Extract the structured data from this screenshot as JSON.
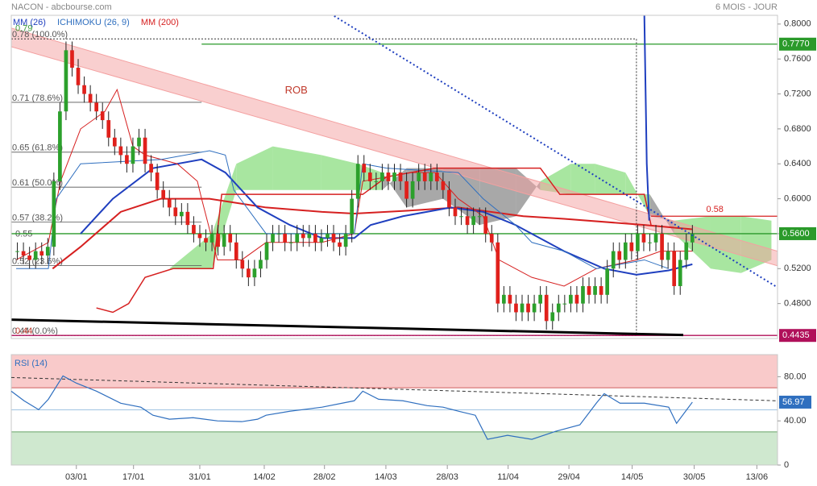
{
  "chart_data": [
    {
      "type": "candlestick",
      "title": "NACON - abcbourse.com",
      "subtitle": "6 MOIS - JOUR",
      "legend": [
        {
          "label": "MM (26)",
          "color": "#1f3fbf"
        },
        {
          "label": "ICHIMOKU (26, 9)",
          "color": "#2f6fbf"
        },
        {
          "label": "MM (200)",
          "color": "#d62020"
        }
      ],
      "xlim": [
        -1,
        125
      ],
      "ylim": [
        0.44,
        0.81
      ],
      "yticks": [
        {
          "value": 0.8,
          "label": "0.8000"
        },
        {
          "value": 0.76,
          "label": "0.7600"
        },
        {
          "value": 0.72,
          "label": "0.7200"
        },
        {
          "value": 0.68,
          "label": "0.6800"
        },
        {
          "value": 0.64,
          "label": "0.6400"
        },
        {
          "value": 0.6,
          "label": "0.6000"
        },
        {
          "value": 0.56,
          "label": "0.5600"
        },
        {
          "value": 0.52,
          "label": "0.5200"
        },
        {
          "value": 0.48,
          "label": "0.4800"
        }
      ],
      "up_color": "#2ca02c",
      "down_color": "#e0201b",
      "open": [
        0.54,
        0.54,
        0.535,
        0.53,
        0.54,
        0.535,
        0.545,
        0.62,
        0.7,
        0.77,
        0.75,
        0.73,
        0.72,
        0.71,
        0.7,
        0.69,
        0.67,
        0.66,
        0.65,
        0.64,
        0.66,
        0.67,
        0.64,
        0.63,
        0.61,
        0.6,
        0.59,
        0.58,
        0.585,
        0.57,
        0.56,
        0.555,
        0.55,
        0.56,
        0.545,
        0.56,
        0.55,
        0.53,
        0.52,
        0.51,
        0.52,
        0.53,
        0.55,
        0.56,
        0.56,
        0.55,
        0.55,
        0.56,
        0.555,
        0.56,
        0.55,
        0.555,
        0.56,
        0.55,
        0.545,
        0.56,
        0.6,
        0.64,
        0.63,
        0.62,
        0.62,
        0.63,
        0.62,
        0.63,
        0.62,
        0.6,
        0.62,
        0.63,
        0.62,
        0.63,
        0.62,
        0.61,
        0.59,
        0.58,
        0.58,
        0.57,
        0.58,
        0.58,
        0.56,
        0.55,
        0.48,
        0.49,
        0.48,
        0.47,
        0.48,
        0.47,
        0.48,
        0.49,
        0.46,
        0.47,
        0.48,
        0.48,
        0.49,
        0.48,
        0.5,
        0.49,
        0.5,
        0.49,
        0.52,
        0.54,
        0.53,
        0.55,
        0.54,
        0.56,
        0.55,
        0.55,
        0.56,
        0.53,
        0.54,
        0.5,
        0.53,
        0.55
      ],
      "high": [
        0.55,
        0.55,
        0.545,
        0.55,
        0.55,
        0.555,
        0.63,
        0.71,
        0.78,
        0.78,
        0.76,
        0.74,
        0.73,
        0.72,
        0.71,
        0.7,
        0.68,
        0.67,
        0.66,
        0.67,
        0.68,
        0.68,
        0.65,
        0.64,
        0.62,
        0.61,
        0.6,
        0.595,
        0.595,
        0.58,
        0.57,
        0.565,
        0.57,
        0.57,
        0.57,
        0.57,
        0.56,
        0.54,
        0.53,
        0.53,
        0.54,
        0.56,
        0.57,
        0.57,
        0.57,
        0.56,
        0.57,
        0.57,
        0.57,
        0.57,
        0.565,
        0.57,
        0.57,
        0.56,
        0.57,
        0.61,
        0.65,
        0.65,
        0.64,
        0.63,
        0.64,
        0.64,
        0.64,
        0.64,
        0.63,
        0.63,
        0.64,
        0.64,
        0.64,
        0.64,
        0.63,
        0.62,
        0.6,
        0.59,
        0.59,
        0.59,
        0.59,
        0.59,
        0.57,
        0.56,
        0.5,
        0.5,
        0.49,
        0.49,
        0.49,
        0.49,
        0.5,
        0.5,
        0.48,
        0.49,
        0.49,
        0.5,
        0.5,
        0.51,
        0.51,
        0.51,
        0.51,
        0.53,
        0.55,
        0.55,
        0.56,
        0.56,
        0.57,
        0.57,
        0.56,
        0.57,
        0.57,
        0.55,
        0.55,
        0.54,
        0.56,
        0.57
      ],
      "low": [
        0.53,
        0.525,
        0.52,
        0.52,
        0.525,
        0.525,
        0.535,
        0.61,
        0.69,
        0.74,
        0.72,
        0.71,
        0.7,
        0.69,
        0.68,
        0.66,
        0.65,
        0.64,
        0.63,
        0.63,
        0.65,
        0.63,
        0.62,
        0.6,
        0.59,
        0.58,
        0.57,
        0.57,
        0.56,
        0.55,
        0.545,
        0.54,
        0.54,
        0.535,
        0.535,
        0.54,
        0.52,
        0.51,
        0.5,
        0.5,
        0.51,
        0.52,
        0.54,
        0.55,
        0.54,
        0.54,
        0.54,
        0.545,
        0.545,
        0.54,
        0.54,
        0.545,
        0.54,
        0.535,
        0.535,
        0.55,
        0.59,
        0.62,
        0.61,
        0.61,
        0.61,
        0.61,
        0.61,
        0.61,
        0.59,
        0.59,
        0.61,
        0.61,
        0.61,
        0.61,
        0.6,
        0.58,
        0.57,
        0.57,
        0.56,
        0.56,
        0.57,
        0.55,
        0.54,
        0.47,
        0.47,
        0.47,
        0.46,
        0.46,
        0.46,
        0.46,
        0.47,
        0.45,
        0.45,
        0.46,
        0.47,
        0.47,
        0.47,
        0.47,
        0.48,
        0.48,
        0.48,
        0.48,
        0.51,
        0.52,
        0.52,
        0.53,
        0.53,
        0.54,
        0.54,
        0.54,
        0.52,
        0.52,
        0.49,
        0.49,
        0.52,
        0.54
      ],
      "close": [
        0.54,
        0.535,
        0.53,
        0.54,
        0.535,
        0.545,
        0.62,
        0.7,
        0.77,
        0.75,
        0.73,
        0.72,
        0.71,
        0.7,
        0.69,
        0.67,
        0.66,
        0.65,
        0.64,
        0.66,
        0.67,
        0.64,
        0.63,
        0.61,
        0.6,
        0.59,
        0.58,
        0.585,
        0.57,
        0.56,
        0.555,
        0.55,
        0.56,
        0.545,
        0.56,
        0.55,
        0.53,
        0.52,
        0.51,
        0.52,
        0.53,
        0.55,
        0.56,
        0.56,
        0.55,
        0.55,
        0.56,
        0.555,
        0.56,
        0.55,
        0.555,
        0.56,
        0.55,
        0.545,
        0.56,
        0.6,
        0.64,
        0.63,
        0.62,
        0.62,
        0.63,
        0.62,
        0.63,
        0.62,
        0.6,
        0.62,
        0.63,
        0.62,
        0.63,
        0.62,
        0.61,
        0.59,
        0.58,
        0.58,
        0.57,
        0.58,
        0.58,
        0.56,
        0.55,
        0.48,
        0.49,
        0.48,
        0.47,
        0.48,
        0.47,
        0.48,
        0.49,
        0.46,
        0.47,
        0.48,
        0.48,
        0.49,
        0.48,
        0.5,
        0.49,
        0.5,
        0.49,
        0.52,
        0.54,
        0.53,
        0.55,
        0.54,
        0.56,
        0.55,
        0.55,
        0.56,
        0.53,
        0.54,
        0.5,
        0.53,
        0.55,
        0.56
      ],
      "cloud": {
        "x": [
          25,
          32,
          36,
          42,
          50,
          56,
          60,
          64,
          70,
          76,
          82,
          86,
          91,
          95,
          100,
          104,
          108,
          114,
          119,
          124
        ],
        "a": [
          0.52,
          0.56,
          0.64,
          0.66,
          0.65,
          0.64,
          0.63,
          0.59,
          0.6,
          0.57,
          0.58,
          0.62,
          0.64,
          0.64,
          0.63,
          0.58,
          0.575,
          0.58,
          0.58,
          0.575
        ],
        "b": [
          0.52,
          0.52,
          0.61,
          0.61,
          0.61,
          0.61,
          0.61,
          0.635,
          0.635,
          0.635,
          0.635,
          0.61,
          0.605,
          0.605,
          0.605,
          0.605,
          0.56,
          0.52,
          0.515,
          0.53
        ],
        "up_color": "#a8e6a0",
        "down_color": "#a8a8a8"
      },
      "channel": {
        "x": [
          -1,
          125
        ],
        "upper": [
          0.7954,
          0.54
        ],
        "lower": [
          0.774,
          0.5233
        ],
        "color": "#f4a0a0",
        "label": "ROB",
        "label_x": 44,
        "label_y": 0.7235,
        "label_color": "#c0392b"
      },
      "lines": [
        {
          "color": "#d62020",
          "width": 2,
          "x": [
            5.8,
            10.4,
            17,
            23.6,
            31.6,
            40.9,
            50.1,
            55.4,
            63.4,
            72.5,
            83.2,
            89.9,
            103.1,
            111
          ],
          "values": [
            0.52,
            0.545,
            0.585,
            0.6,
            0.6,
            0.59,
            0.585,
            0.583,
            0.586,
            0.59,
            0.58,
            0.577,
            0.57,
            0.565
          ]
        },
        {
          "color": "#1f3fbf",
          "width": 2,
          "x": [
            10.4,
            15.7,
            22.3,
            30.3,
            34.2,
            39.5,
            44.8,
            50.1,
            55.4,
            58.1,
            63.4,
            71.3,
            76.6,
            81.9,
            89.9,
            96.5,
            101.8,
            107.1,
            111
          ],
          "values": [
            0.56,
            0.6,
            0.635,
            0.645,
            0.63,
            0.59,
            0.57,
            0.555,
            0.555,
            0.57,
            0.58,
            0.59,
            0.585,
            0.57,
            0.54,
            0.52,
            0.513,
            0.518,
            0.525
          ]
        },
        {
          "color": "#d62020",
          "width": 1,
          "x": [
            -0.2,
            5.1,
            7.1,
            10.4,
            14.4,
            16.4,
            19,
            21,
            26.3,
            29.6,
            30.3,
            32.9,
            36.9,
            40.9,
            50.1,
            55.4,
            56.8,
            64.7,
            68.7,
            72.5,
            76.6,
            79.2,
            84.6,
            89.9,
            95.2,
            101.8,
            105.8,
            111
          ],
          "values": [
            0.53,
            0.55,
            0.62,
            0.68,
            0.7,
            0.725,
            0.66,
            0.65,
            0.64,
            0.62,
            0.6,
            0.53,
            0.53,
            0.55,
            0.55,
            0.56,
            0.62,
            0.63,
            0.63,
            0.6,
            0.58,
            0.53,
            0.51,
            0.5,
            0.52,
            0.53,
            0.54,
            0.54
          ]
        },
        {
          "color": "#2f6fbf",
          "width": 1,
          "x": [
            -0.2,
            5.1,
            6.4,
            10.4,
            23.6,
            31.6,
            34.2,
            35.6,
            40.9,
            55.4,
            56.8,
            60.7,
            72.5,
            76.6,
            81.9,
            84.6,
            89.9,
            95.2,
            103.1,
            107.1
          ],
          "values": [
            0.52,
            0.52,
            0.6,
            0.64,
            0.645,
            0.655,
            0.65,
            0.61,
            0.56,
            0.56,
            0.64,
            0.635,
            0.63,
            0.6,
            0.57,
            0.55,
            0.54,
            0.52,
            0.53,
            0.52
          ]
        },
        {
          "color": "#d62020",
          "width": 1.5,
          "x": [
            13,
            15.7,
            18.3,
            21,
            25.6,
            32.2,
            33.6,
            55.4,
            56.8,
            60.7,
            68.7,
            86,
            89.2,
            103.1,
            104.2
          ],
          "values": [
            0.475,
            0.47,
            0.48,
            0.51,
            0.52,
            0.52,
            0.605,
            0.605,
            0.605,
            0.625,
            0.635,
            0.635,
            0.605,
            0.605,
            0.57
          ]
        },
        {
          "color": "#1f3fbf",
          "width": 2,
          "x": [
            103.1,
            103.5,
            103.9
          ],
          "values": [
            0.81,
            0.64,
            0.575
          ]
        }
      ],
      "trendlines": [
        {
          "color": "#1f3fbf",
          "dash": "2,3",
          "width": 2,
          "x": [
            52.1,
            125
          ],
          "values": [
            0.8092,
            0.4985
          ]
        },
        {
          "color": "#000000",
          "dash": "",
          "width": 3,
          "x": [
            -1,
            109.5
          ],
          "values": [
            0.4616,
            0.444
          ]
        }
      ],
      "fib": {
        "x_end": 101.8,
        "line_end": 30.3,
        "color": "#555555",
        "levels": [
          {
            "value": 0.783,
            "label": "0.78 (100.0%)"
          },
          {
            "value": 0.7104,
            "label": "0.71 (78.6%)"
          },
          {
            "value": 0.6533,
            "label": "0.65 (61.8%)"
          },
          {
            "value": 0.6133,
            "label": "0.61 (50.0%)"
          },
          {
            "value": 0.5732,
            "label": "0.57 (38.2%)"
          },
          {
            "value": 0.5236,
            "label": "0.52 (23.6%)"
          },
          {
            "value": 0.4435,
            "label": "0.44 (0.0%)"
          }
        ]
      },
      "extra_labels": [
        {
          "value": 0.79,
          "color": "#3a9a3a"
        },
        {
          "value": 0.5547,
          "label": "0.55",
          "color": "#555555"
        },
        {
          "value": 0.4435,
          "label": "0.44",
          "color": "#c0392b"
        }
      ],
      "hlines": [
        {
          "value": 0.777,
          "label": "0.7770",
          "color": "#2a9a2a",
          "start": 30.3,
          "style": "box"
        },
        {
          "value": 0.56,
          "label": "0.5600",
          "color": "#2a9a2a",
          "start": -1,
          "style": "box"
        },
        {
          "value": 0.4435,
          "label": "0.4435",
          "color": "#b0105a",
          "start": -1,
          "style": "box"
        },
        {
          "value": 0.58,
          "color": "#d62020",
          "start": 104.2,
          "style": "text"
        }
      ]
    },
    {
      "type": "line",
      "title": "RSI (14)",
      "xlim": [
        -1,
        125
      ],
      "ylim": [
        0,
        100
      ],
      "yticks": [
        {
          "value": 80,
          "label": "80.00"
        },
        {
          "value": 40,
          "label": "40.00"
        },
        0
      ],
      "xticks": [
        {
          "value": 9.7,
          "label": "03/01"
        },
        {
          "value": 19.1,
          "label": "17/01"
        },
        {
          "value": 30,
          "label": "31/01"
        },
        {
          "value": 40.6,
          "label": "14/02"
        },
        {
          "value": 50.5,
          "label": "28/02"
        },
        {
          "value": 60.6,
          "label": "14/03"
        },
        {
          "value": 70.7,
          "label": "28/03"
        },
        {
          "value": 80.7,
          "label": "11/04"
        },
        {
          "value": 90.7,
          "label": "29/04"
        },
        {
          "value": 101.1,
          "label": "14/05"
        },
        {
          "value": 111.3,
          "label": "30/05"
        },
        {
          "value": 121.6,
          "label": "13/06"
        }
      ],
      "bands": [
        {
          "from": 70,
          "to": 100,
          "color": "#f9caca"
        },
        {
          "from": 0,
          "to": 30,
          "color": "#cfe8cf"
        }
      ],
      "levels": [
        {
          "value": 70,
          "color": "#c03030"
        },
        {
          "value": 50,
          "color": "#7fb0d8"
        },
        {
          "value": 30,
          "color": "#3a8a3a"
        }
      ],
      "trend": {
        "x": [
          -1,
          125
        ],
        "values": [
          79.3,
          58.2
        ],
        "color": "#333333"
      },
      "series": [
        {
          "color": "#2f6fbf",
          "x": [
            -1,
            1.1,
            3.5,
            5.1,
            7.5,
            9.7,
            13,
            17,
            20.3,
            22.3,
            25,
            28.9,
            32.9,
            36.9,
            39.5,
            40.9,
            44.8,
            50.1,
            55.4,
            56.8,
            59.4,
            63.4,
            67.4,
            70,
            72.6,
            75.3,
            77.3,
            80.6,
            84.6,
            88.5,
            92.5,
            95.2,
            96.5,
            99.1,
            103.1,
            107.1,
            108.4,
            111
          ],
          "values": [
            66.9,
            58.2,
            50.2,
            59.6,
            80.7,
            74.2,
            66.9,
            56.0,
            52.4,
            45.1,
            41.5,
            42.9,
            40.0,
            39.3,
            41.5,
            45.1,
            48.7,
            52.4,
            58.2,
            66.9,
            59.6,
            58.2,
            53.8,
            52.4,
            48.7,
            45.1,
            23.3,
            26.9,
            23.3,
            30.5,
            36.4,
            56.0,
            64.7,
            56.0,
            56.0,
            52.4,
            37.8,
            56.97
          ],
          "value_labels": [
            null,
            null,
            null,
            null,
            null,
            null,
            null,
            null,
            null,
            null,
            null,
            null,
            null,
            null,
            null,
            null,
            null,
            null,
            null,
            null,
            null,
            null,
            null,
            null,
            null,
            null,
            null,
            null,
            null,
            null,
            null,
            null,
            null,
            null,
            null,
            null,
            null,
            "56.97"
          ]
        }
      ]
    }
  ]
}
